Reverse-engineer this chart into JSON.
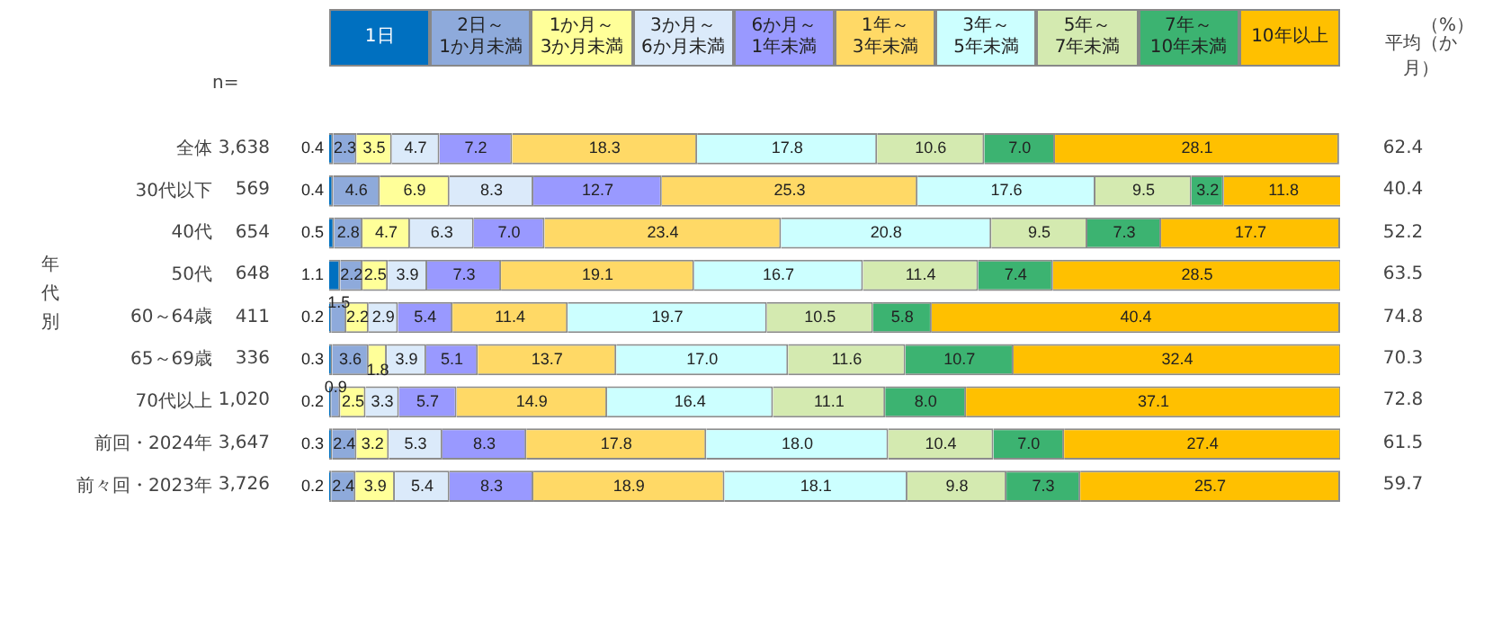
{
  "chart_data": {
    "type": "bar",
    "orientation": "horizontal",
    "stacked": true,
    "categories": [
      "全体",
      "30代以下",
      "40代",
      "50代",
      "60～64歳",
      "65～69歳",
      "70代以上",
      "前回・2024年",
      "前々回・2023年"
    ],
    "series": [
      {
        "name": "1日",
        "color": "#0070c0",
        "values": [
          0.4,
          0.4,
          0.5,
          1.1,
          0.2,
          0.3,
          0.2,
          0.3,
          0.2
        ],
        "value_labels": [
          "0.4",
          "0.4",
          "0.5",
          "1.1",
          "0.2",
          "0.3",
          "0.2",
          "0.3",
          "0.2"
        ]
      },
      {
        "name": "2日～\n1か月未満",
        "color": "#8eaadb",
        "values": [
          2.3,
          4.6,
          2.8,
          2.2,
          1.5,
          3.6,
          0.9,
          2.4,
          2.4
        ],
        "value_labels": [
          "2.3",
          "4.6",
          "2.8",
          "2.2",
          "1.5",
          "3.6",
          "0.9",
          "2.4",
          "2.4"
        ]
      },
      {
        "name": "1か月～\n3か月未満",
        "color": "#ffff99",
        "values": [
          3.5,
          6.9,
          4.7,
          2.5,
          2.2,
          1.8,
          2.5,
          3.2,
          3.9
        ],
        "value_labels": [
          "3.5",
          "6.9",
          "4.7",
          "2.5",
          "2.2",
          "1.8",
          "2.5",
          "3.2",
          "3.9"
        ]
      },
      {
        "name": "3か月～\n6か月未満",
        "color": "#dbeafa",
        "values": [
          4.7,
          8.3,
          6.3,
          3.9,
          2.9,
          3.9,
          3.3,
          5.3,
          5.4
        ],
        "value_labels": [
          "4.7",
          "8.3",
          "6.3",
          "3.9",
          "2.9",
          "3.9",
          "3.3",
          "5.3",
          "5.4"
        ]
      },
      {
        "name": "6か月～\n1年未満",
        "color": "#9999ff",
        "values": [
          7.2,
          12.7,
          7.0,
          7.3,
          5.4,
          5.1,
          5.7,
          8.3,
          8.3
        ],
        "value_labels": [
          "7.2",
          "12.7",
          "7.0",
          "7.3",
          "5.4",
          "5.1",
          "5.7",
          "8.3",
          "8.3"
        ]
      },
      {
        "name": "1年～\n3年未満",
        "color": "#ffd966",
        "values": [
          18.3,
          25.3,
          23.4,
          19.1,
          11.4,
          13.7,
          14.9,
          17.8,
          18.9
        ],
        "value_labels": [
          "18.3",
          "25.3",
          "23.4",
          "19.1",
          "11.4",
          "13.7",
          "14.9",
          "17.8",
          "18.9"
        ]
      },
      {
        "name": "3年～\n5年未満",
        "color": "#ccffff",
        "values": [
          17.8,
          17.6,
          20.8,
          16.7,
          19.7,
          17.0,
          16.4,
          18.0,
          18.1
        ],
        "value_labels": [
          "17.8",
          "17.6",
          "20.8",
          "16.7",
          "19.7",
          "17.0",
          "16.4",
          "18.0",
          "18.1"
        ]
      },
      {
        "name": "5年～\n7年未満",
        "color": "#d4eab0",
        "values": [
          10.6,
          9.5,
          9.5,
          11.4,
          10.5,
          11.6,
          11.1,
          10.4,
          9.8
        ],
        "value_labels": [
          "10.6",
          "9.5",
          "9.5",
          "11.4",
          "10.5",
          "11.6",
          "11.1",
          "10.4",
          "9.8"
        ]
      },
      {
        "name": "7年～\n10年未満",
        "color": "#3cb371",
        "values": [
          7.0,
          3.2,
          7.3,
          7.4,
          5.8,
          10.7,
          8.0,
          7.0,
          7.3
        ],
        "value_labels": [
          "7.0",
          "3.2",
          "7.3",
          "7.4",
          "5.8",
          "10.7",
          "8.0",
          "7.0",
          "7.3"
        ]
      },
      {
        "name": "10年以上",
        "color": "#ffc000",
        "values": [
          28.1,
          11.8,
          17.7,
          28.5,
          40.4,
          32.4,
          37.1,
          27.4,
          25.7
        ],
        "value_labels": [
          "28.1",
          "11.8",
          "17.7",
          "28.5",
          "40.4",
          "32.4",
          "37.1",
          "27.4",
          "25.7"
        ]
      }
    ],
    "xlim": [
      0,
      100
    ],
    "tick_labels": "y",
    "legend": "top",
    "annotations": [
      "（%）",
      "n=",
      "平均（か月）",
      "年代別",
      "3,638",
      "62.4",
      "569",
      "40.4",
      "654",
      "52.2",
      "648",
      "63.5",
      "411",
      "74.8",
      "336",
      "70.3",
      "1,020",
      "72.8",
      "3,647",
      "61.5",
      "3,726",
      "59.7"
    ]
  }
}
